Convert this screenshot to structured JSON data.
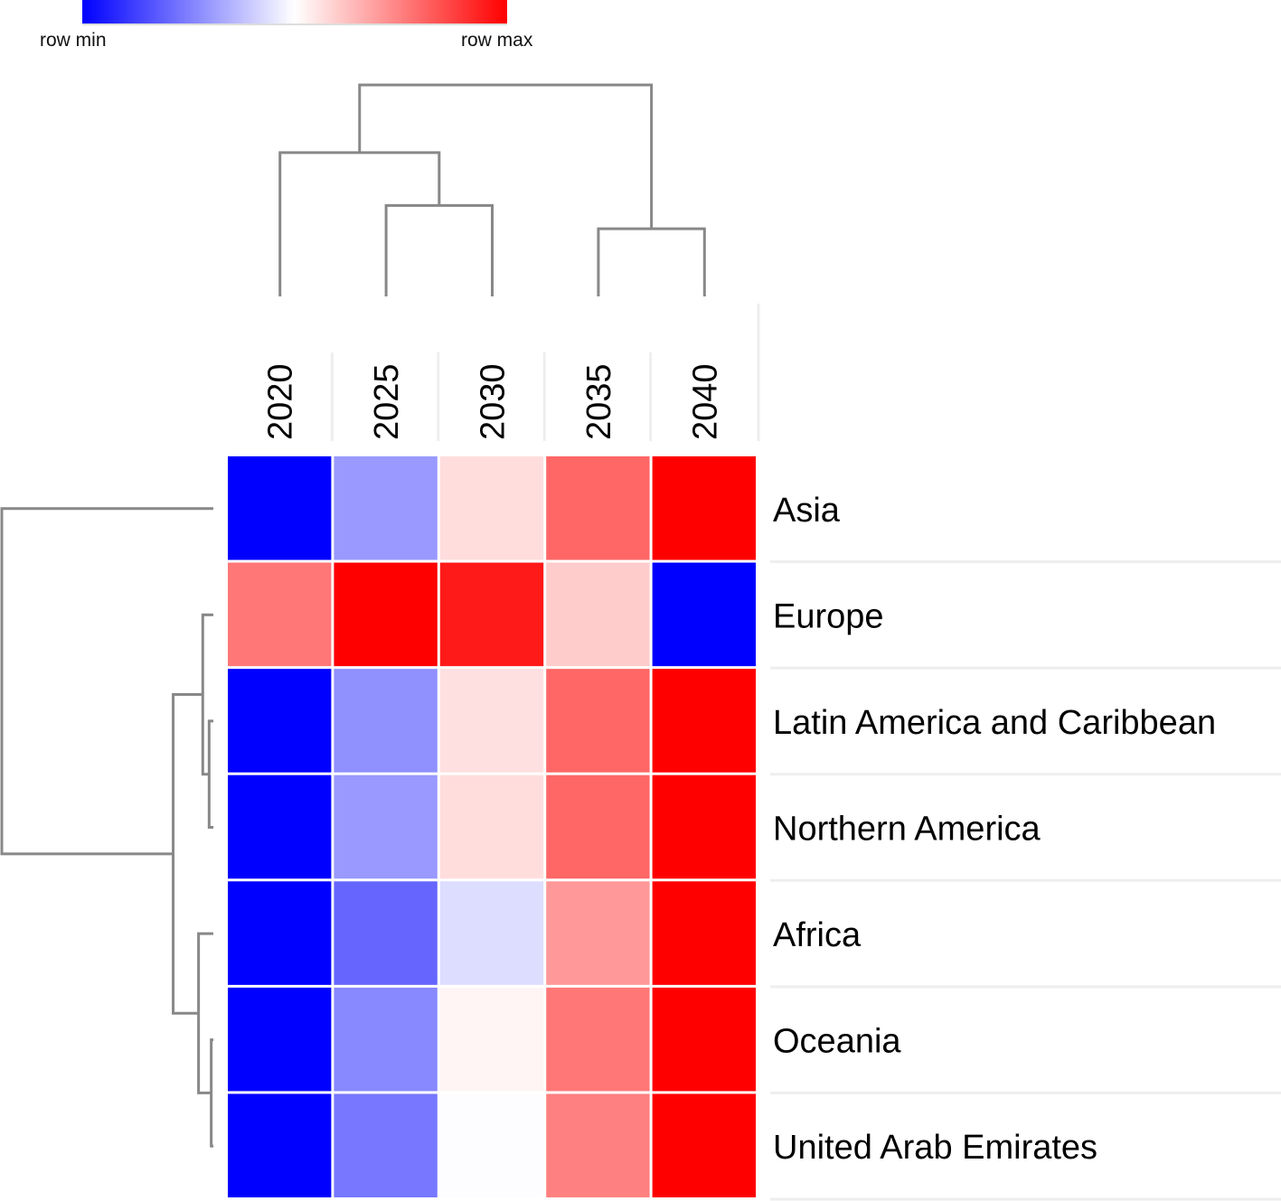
{
  "chart_data": {
    "type": "heatmap",
    "title": "",
    "color_scale": {
      "min_label": "row min",
      "max_label": "row max",
      "min_color": "#0000ff",
      "mid_color": "#ffffff",
      "max_color": "#ff0000"
    },
    "columns": [
      "2020",
      "2025",
      "2030",
      "2035",
      "2040"
    ],
    "rows": [
      "Asia",
      "Europe",
      "Latin America and Caribbean",
      "Northern America",
      "Africa",
      "Oceania",
      "United Arab Emirates"
    ],
    "values_normalized": [
      [
        -1.0,
        -0.4,
        0.13,
        0.6,
        1.0
      ],
      [
        0.53,
        1.0,
        0.9,
        0.2,
        -1.0
      ],
      [
        -1.0,
        -0.43,
        0.12,
        0.6,
        1.0
      ],
      [
        -1.0,
        -0.4,
        0.13,
        0.6,
        1.0
      ],
      [
        -1.0,
        -0.6,
        -0.13,
        0.4,
        1.0
      ],
      [
        -1.0,
        -0.47,
        0.04,
        0.53,
        1.0
      ],
      [
        -1.0,
        -0.53,
        -0.01,
        0.5,
        1.0
      ]
    ],
    "cell_colors": [
      [
        "#0000ff",
        "#9999ff",
        "#ffdddd",
        "#ff6666",
        "#ff0000"
      ],
      [
        "#ff7777",
        "#ff0000",
        "#ff1a1a",
        "#ffcccc",
        "#0000ff"
      ],
      [
        "#0000ff",
        "#9090ff",
        "#ffe0e0",
        "#ff6666",
        "#ff0000"
      ],
      [
        "#0000ff",
        "#9999ff",
        "#ffdddd",
        "#ff6666",
        "#ff0000"
      ],
      [
        "#0000ff",
        "#6666ff",
        "#ddddff",
        "#ff9999",
        "#ff0000"
      ],
      [
        "#0000ff",
        "#8888ff",
        "#fff5f5",
        "#ff7777",
        "#ff0000"
      ],
      [
        "#0000ff",
        "#7777ff",
        "#fdfcff",
        "#ff8080",
        "#ff0000"
      ]
    ],
    "column_dendrogram": {
      "merges": [
        {
          "left": "2025",
          "right": "2030",
          "height": 0.43
        },
        {
          "left": "2035",
          "right": "2040",
          "height": 0.32
        },
        {
          "left": "2020",
          "right": "2025+2030",
          "height": 0.68
        },
        {
          "left": "2020+2025+2030",
          "right": "2035+2040",
          "height": 1.0
        }
      ]
    },
    "row_dendrogram": {
      "merges": [
        {
          "left": "Latin America and Caribbean",
          "right": "Northern America",
          "height": 0.02
        },
        {
          "left": "Oceania",
          "right": "United Arab Emirates",
          "height": 0.01
        },
        {
          "left": "Europe",
          "right": "Latin America and Caribbean+Northern America",
          "height": 0.05
        },
        {
          "left": "Africa",
          "right": "Oceania+United Arab Emirates",
          "height": 0.07
        },
        {
          "left": "Europe+Latin America and Caribbean+Northern America",
          "right": "Africa+Oceania+United Arab Emirates",
          "height": 0.19
        },
        {
          "left": "Asia",
          "right": "rest",
          "height": 1.0
        }
      ]
    },
    "legend": "top-left"
  }
}
